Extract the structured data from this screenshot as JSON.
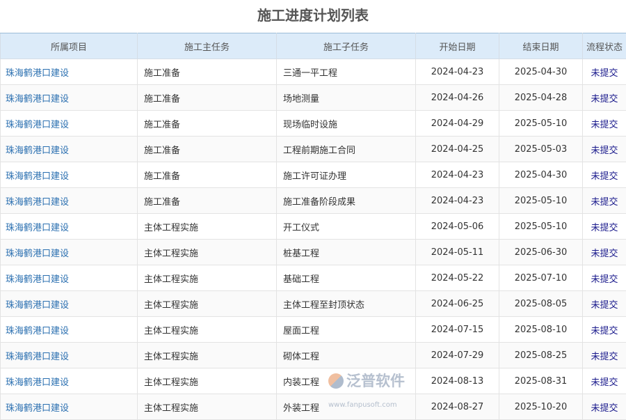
{
  "title": "施工进度计划列表",
  "columns": [
    "所属项目",
    "施工主任务",
    "施工子任务",
    "开始日期",
    "结束日期",
    "流程状态"
  ],
  "rows": [
    [
      "珠海鹤港口建设",
      "施工准备",
      "三通一平工程",
      "2024-04-23",
      "2025-04-30",
      "未提交"
    ],
    [
      "珠海鹤港口建设",
      "施工准备",
      "场地测量",
      "2024-04-26",
      "2025-04-28",
      "未提交"
    ],
    [
      "珠海鹤港口建设",
      "施工准备",
      "现场临时设施",
      "2024-04-29",
      "2025-05-10",
      "未提交"
    ],
    [
      "珠海鹤港口建设",
      "施工准备",
      "工程前期施工合同",
      "2024-04-25",
      "2025-05-03",
      "未提交"
    ],
    [
      "珠海鹤港口建设",
      "施工准备",
      "施工许可证办理",
      "2024-04-23",
      "2025-04-30",
      "未提交"
    ],
    [
      "珠海鹤港口建设",
      "施工准备",
      "施工准备阶段成果",
      "2024-04-23",
      "2025-05-10",
      "未提交"
    ],
    [
      "珠海鹤港口建设",
      "主体工程实施",
      "开工仪式",
      "2024-05-06",
      "2025-05-10",
      "未提交"
    ],
    [
      "珠海鹤港口建设",
      "主体工程实施",
      "桩基工程",
      "2024-05-11",
      "2025-06-30",
      "未提交"
    ],
    [
      "珠海鹤港口建设",
      "主体工程实施",
      "基础工程",
      "2024-05-22",
      "2025-07-10",
      "未提交"
    ],
    [
      "珠海鹤港口建设",
      "主体工程实施",
      "主体工程至封顶状态",
      "2024-06-25",
      "2025-08-05",
      "未提交"
    ],
    [
      "珠海鹤港口建设",
      "主体工程实施",
      "屋面工程",
      "2024-07-15",
      "2025-08-10",
      "未提交"
    ],
    [
      "珠海鹤港口建设",
      "主体工程实施",
      "砌体工程",
      "2024-07-29",
      "2025-08-25",
      "未提交"
    ],
    [
      "珠海鹤港口建设",
      "主体工程实施",
      "内装工程",
      "2024-08-13",
      "2025-08-31",
      "未提交"
    ],
    [
      "珠海鹤港口建设",
      "主体工程实施",
      "外装工程",
      "2024-08-27",
      "2025-10-20",
      "未提交"
    ]
  ],
  "watermark": {
    "name": "泛普软件",
    "url": "www.fanpusoft.com"
  }
}
